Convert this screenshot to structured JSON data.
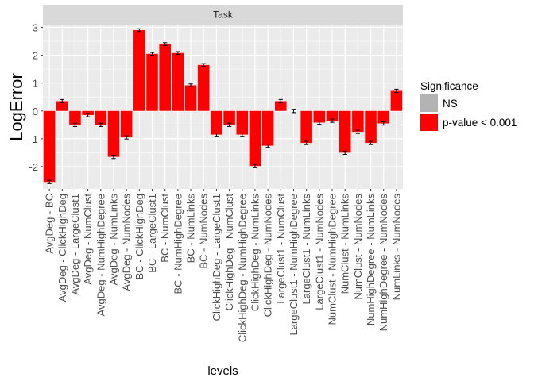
{
  "chart_data": {
    "type": "bar",
    "facet_label": "Task",
    "xlabel": "levels",
    "ylabel": "LogError",
    "ylim": [
      -2.8,
      3.1
    ],
    "yticks": [
      -2,
      -1,
      0,
      1,
      2,
      3
    ],
    "grid": true,
    "legend_position": "right",
    "legend": {
      "title": "Significance",
      "entries": [
        {
          "label": "NS",
          "color": "#b3b3b3"
        },
        {
          "label": "p-value < 0.001",
          "color": "#ff0000"
        }
      ]
    },
    "colors": {
      "panel_background": "#ebebeb",
      "strip_background": "#d9d9d9",
      "grid": "#ffffff",
      "bar": "#ff0000",
      "error_bar": "#000000"
    },
    "categories": [
      "AvgDeg - BC",
      "AvgDeg - ClickHighDeg",
      "AvgDeg - LargeClust1",
      "AvgDeg - NumClust",
      "AvgDeg - NumHighDegree",
      "AvgDeg - NumLinks",
      "AvgDeg - NumNodes",
      "BC - ClickHighDeg",
      "BC - LargeClust1",
      "BC - NumClust",
      "BC - NumHighDegree",
      "BC - NumLinks",
      "BC - NumNodes",
      "ClickHighDeg - LargeClust1",
      "ClickHighDeg - NumClust",
      "ClickHighDeg - NumHighDegree",
      "ClickHighDeg - NumLinks",
      "ClickHighDeg - NumNodes",
      "LargeClust1 - NumClust",
      "LargeClust1 - NumHighDegree",
      "LargeClust1 - NumLinks",
      "LargeClust1 - NumNodes",
      "NumClust - NumHighDegree",
      "NumClust - NumLinks",
      "NumClust - NumNodes",
      "NumHighDegree - NumLinks",
      "NumHighDegree - NumNodes",
      "NumLinks - NumNodes"
    ],
    "values": [
      -2.55,
      0.35,
      -0.5,
      -0.15,
      -0.5,
      -1.65,
      -0.95,
      2.9,
      2.05,
      2.4,
      2.08,
      0.92,
      1.65,
      -0.85,
      -0.5,
      -0.85,
      -1.98,
      -1.25,
      0.35,
      0.0,
      -1.15,
      -0.42,
      -0.35,
      -1.5,
      -0.75,
      -1.15,
      -0.45,
      0.72
    ],
    "significance": [
      "p-value < 0.001",
      "p-value < 0.001",
      "p-value < 0.001",
      "p-value < 0.001",
      "p-value < 0.001",
      "p-value < 0.001",
      "p-value < 0.001",
      "p-value < 0.001",
      "p-value < 0.001",
      "p-value < 0.001",
      "p-value < 0.001",
      "p-value < 0.001",
      "p-value < 0.001",
      "p-value < 0.001",
      "p-value < 0.001",
      "p-value < 0.001",
      "p-value < 0.001",
      "p-value < 0.001",
      "p-value < 0.001",
      "NS",
      "p-value < 0.001",
      "p-value < 0.001",
      "p-value < 0.001",
      "p-value < 0.001",
      "p-value < 0.001",
      "p-value < 0.001",
      "p-value < 0.001",
      "p-value < 0.001"
    ],
    "error": [
      0.06,
      0.06,
      0.06,
      0.06,
      0.06,
      0.06,
      0.06,
      0.05,
      0.05,
      0.05,
      0.05,
      0.05,
      0.05,
      0.06,
      0.06,
      0.06,
      0.06,
      0.06,
      0.06,
      0.06,
      0.06,
      0.06,
      0.06,
      0.06,
      0.06,
      0.06,
      0.06,
      0.06
    ]
  }
}
